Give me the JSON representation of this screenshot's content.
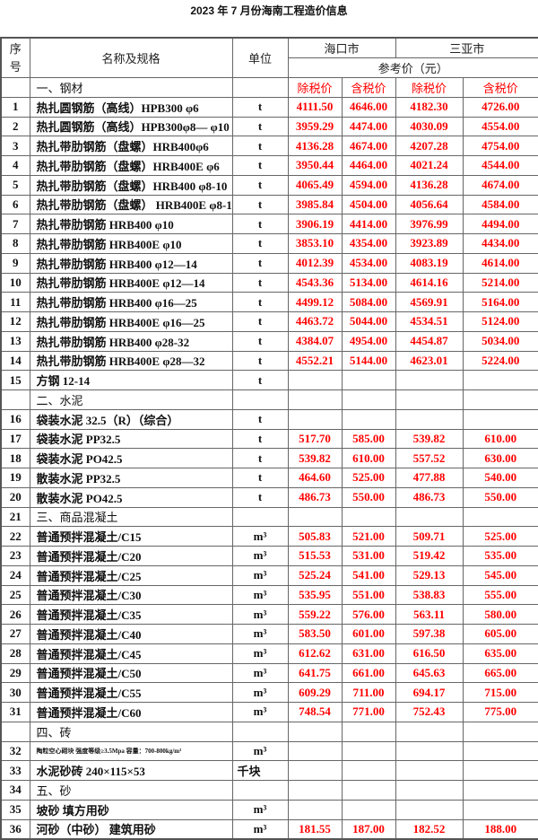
{
  "title": "2023 年 7 月份海南工程造价信息",
  "header": {
    "seq": "序\n号",
    "seq_line1": "序",
    "seq_line2": "号",
    "name": "名称及规格",
    "unit": "单位",
    "city1": "海口市",
    "city2": "三亚市",
    "ref_price": "参考价（元）",
    "price_labels": [
      "除税价",
      "含税价",
      "除税价",
      "含税价"
    ]
  },
  "colors": {
    "price": "#ff0000",
    "text": "#111111",
    "border": "#666666"
  },
  "rows": [
    {
      "seq": "",
      "name": "一、钢材",
      "unit": "",
      "prices": [
        "除税价",
        "含税价",
        "除税价",
        "含税价"
      ],
      "section": true,
      "label_row": true
    },
    {
      "seq": "1",
      "name": "热扎圆钢筋（高线）HPB300 φ6",
      "unit": "t",
      "prices": [
        "4111.50",
        "4646.00",
        "4182.30",
        "4726.00"
      ]
    },
    {
      "seq": "2",
      "name": "热扎圆钢筋（高线）HPB300φ8— φ10",
      "unit": "t",
      "prices": [
        "3959.29",
        "4474.00",
        "4030.09",
        "4554.00"
      ]
    },
    {
      "seq": "3",
      "name": "热扎带肋钢筋（盘螺）HRB400φ6",
      "unit": "t",
      "prices": [
        "4136.28",
        "4674.00",
        "4207.28",
        "4754.00"
      ]
    },
    {
      "seq": "4",
      "name": "热扎带肋钢筋（盘螺）HRB400E φ6",
      "unit": "t",
      "prices": [
        "3950.44",
        "4464.00",
        "4021.24",
        "4544.00"
      ]
    },
    {
      "seq": "5",
      "name": "热扎带肋钢筋（盘螺）HRB400 φ8-10",
      "unit": "t",
      "prices": [
        "4065.49",
        "4594.00",
        "4136.28",
        "4674.00"
      ]
    },
    {
      "seq": "6",
      "name": "热扎带肋钢筋（盘螺） HRB400E φ8-10",
      "unit": "t",
      "prices": [
        "3985.84",
        "4504.00",
        "4056.64",
        "4584.00"
      ]
    },
    {
      "seq": "7",
      "name": "热扎带肋钢筋 HRB400    φ10",
      "unit": "t",
      "prices": [
        "3906.19",
        "4414.00",
        "3976.99",
        "4494.00"
      ]
    },
    {
      "seq": "8",
      "name": "热扎带肋钢筋 HRB400E    φ10",
      "unit": "t",
      "prices": [
        "3853.10",
        "4354.00",
        "3923.89",
        "4434.00"
      ]
    },
    {
      "seq": "9",
      "name": "热扎带肋钢筋 HRB400     φ12—14",
      "unit": "t",
      "prices": [
        "4012.39",
        "4534.00",
        "4083.19",
        "4614.00"
      ]
    },
    {
      "seq": "10",
      "name": "热扎带肋钢筋 HRB400E    φ12—14",
      "unit": "t",
      "prices": [
        "4543.36",
        "5134.00",
        "4614.16",
        "5214.00"
      ]
    },
    {
      "seq": "11",
      "name": "热扎带肋钢筋 HRB400     φ16—25",
      "unit": "t",
      "prices": [
        "4499.12",
        "5084.00",
        "4569.91",
        "5164.00"
      ]
    },
    {
      "seq": "12",
      "name": "热扎带肋钢筋 HRB400E    φ16—25",
      "unit": "t",
      "prices": [
        "4463.72",
        "5044.00",
        "4534.51",
        "5124.00"
      ]
    },
    {
      "seq": "13",
      "name": "热扎带肋钢筋 HRB400    φ28-32",
      "unit": "t",
      "prices": [
        "4384.07",
        "4954.00",
        "4454.87",
        "5034.00"
      ]
    },
    {
      "seq": "14",
      "name": "热扎带肋钢筋 HRB400E    φ28—32",
      "unit": "t",
      "prices": [
        "4552.21",
        "5144.00",
        "4623.01",
        "5224.00"
      ]
    },
    {
      "seq": "15",
      "name": "方钢   12-14",
      "unit": "t",
      "prices": [
        "",
        "",
        "",
        ""
      ]
    },
    {
      "seq": "",
      "name": "二、水泥",
      "unit": "",
      "prices": [
        "",
        "",
        "",
        ""
      ],
      "section": true
    },
    {
      "seq": "16",
      "name": "袋装水泥 32.5（R）（综合）",
      "unit": "t",
      "prices": [
        "",
        "",
        "",
        ""
      ]
    },
    {
      "seq": "17",
      "name": "袋装水泥 PP32.5",
      "unit": "t",
      "prices": [
        "517.70",
        "585.00",
        "539.82",
        "610.00"
      ]
    },
    {
      "seq": "18",
      "name": "袋装水泥 PO42.5",
      "unit": "t",
      "prices": [
        "539.82",
        "610.00",
        "557.52",
        "630.00"
      ]
    },
    {
      "seq": "19",
      "name": "散装水泥 PP32.5",
      "unit": "t",
      "prices": [
        "464.60",
        "525.00",
        "477.88",
        "540.00"
      ]
    },
    {
      "seq": "20",
      "name": "散装水泥 PO42.5",
      "unit": "t",
      "prices": [
        "486.73",
        "550.00",
        "486.73",
        "550.00"
      ]
    },
    {
      "seq": "21",
      "name": "三、商品混凝土",
      "unit": "",
      "prices": [
        "",
        "",
        "",
        ""
      ],
      "section": true
    },
    {
      "seq": "22",
      "name": "普通预拌混凝土/C15",
      "unit": "m³",
      "prices": [
        "505.83",
        "521.00",
        "509.71",
        "525.00"
      ]
    },
    {
      "seq": "23",
      "name": "普通预拌混凝土/C20",
      "unit": "m³",
      "prices": [
        "515.53",
        "531.00",
        "519.42",
        "535.00"
      ]
    },
    {
      "seq": "24",
      "name": "普通预拌混凝土/C25",
      "unit": "m³",
      "prices": [
        "525.24",
        "541.00",
        "529.13",
        "545.00"
      ]
    },
    {
      "seq": "25",
      "name": "普通预拌混凝土/C30",
      "unit": "m³",
      "prices": [
        "535.95",
        "551.00",
        "538.83",
        "555.00"
      ]
    },
    {
      "seq": "26",
      "name": "普通预拌混凝土/C35",
      "unit": "m³",
      "prices": [
        "559.22",
        "576.00",
        "563.11",
        "580.00"
      ]
    },
    {
      "seq": "27",
      "name": "普通预拌混凝土/C40",
      "unit": "m³",
      "prices": [
        "583.50",
        "601.00",
        "597.38",
        "605.00"
      ]
    },
    {
      "seq": "28",
      "name": "普通预拌混凝土/C45",
      "unit": "m³",
      "prices": [
        "612.62",
        "631.00",
        "616.50",
        "635.00"
      ]
    },
    {
      "seq": "29",
      "name": "普通预拌混凝土/C50",
      "unit": "m³",
      "prices": [
        "641.75",
        "661.00",
        "645.63",
        "665.00"
      ]
    },
    {
      "seq": "30",
      "name": "普通预拌混凝土/C55",
      "unit": "m³",
      "prices": [
        "609.29",
        "711.00",
        "694.17",
        "715.00"
      ]
    },
    {
      "seq": "31",
      "name": "普通预拌混凝土/C60",
      "unit": "m³",
      "prices": [
        "748.54",
        "771.00",
        "752.43",
        "775.00"
      ]
    },
    {
      "seq": "",
      "name": "四、砖",
      "unit": "",
      "prices": [
        "",
        "",
        "",
        ""
      ],
      "section": true
    },
    {
      "seq": "32",
      "name": "陶粒空心砌块 强度等级≥3.5Mpa 容量：700-800kg/m³",
      "unit": "m³",
      "prices": [
        "",
        "",
        "",
        ""
      ],
      "small": true
    },
    {
      "seq": "33",
      "name": "水泥砂砖 240×115×53",
      "unit": "千块",
      "prices": [
        "",
        "",
        "",
        ""
      ],
      "unit_left": true
    },
    {
      "seq": "34",
      "name": "五、砂",
      "unit": "",
      "prices": [
        "",
        "",
        "",
        ""
      ],
      "section": true
    },
    {
      "seq": "35",
      "name": "坡砂 填方用砂",
      "unit": "m³",
      "prices": [
        "",
        "",
        "",
        ""
      ]
    },
    {
      "seq": "36",
      "name": "河砂（中砂） 建筑用砂",
      "unit": "m³",
      "prices": [
        "181.55",
        "187.00",
        "182.52",
        "188.00"
      ]
    }
  ]
}
